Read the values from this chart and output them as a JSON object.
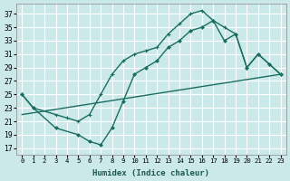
{
  "bg_color": "#cce9e9",
  "line_color": "#1a6e60",
  "xlabel": "Humidex (Indice chaleur)",
  "xlim": [
    -0.5,
    23.5
  ],
  "ylim": [
    16,
    38.5
  ],
  "xticks": [
    0,
    1,
    2,
    3,
    4,
    5,
    6,
    7,
    8,
    9,
    10,
    11,
    12,
    13,
    14,
    15,
    16,
    17,
    18,
    19,
    20,
    21,
    22,
    23
  ],
  "yticks": [
    17,
    19,
    21,
    23,
    25,
    27,
    29,
    31,
    33,
    35,
    37
  ],
  "grid_color": "#ffffff",
  "line1_x": [
    0,
    1,
    3,
    4,
    5,
    6,
    7,
    8,
    9,
    10,
    11,
    12,
    13,
    14,
    15,
    16,
    17,
    18,
    19,
    20,
    21,
    22,
    23
  ],
  "line1_y": [
    25,
    23,
    22,
    21.5,
    21,
    22,
    25,
    28,
    30,
    31,
    31.5,
    32,
    34,
    35.5,
    37,
    37.5,
    36,
    35,
    34,
    29,
    31,
    29.5,
    28
  ],
  "line2_x": [
    0,
    23
  ],
  "line2_y": [
    22,
    28
  ],
  "line3_x": [
    0,
    1,
    3,
    5,
    6,
    7,
    8,
    9,
    10,
    11,
    12,
    13,
    14,
    15,
    16,
    17,
    18,
    19,
    20,
    21,
    22,
    23
  ],
  "line3_y": [
    25,
    23,
    20,
    19,
    18,
    17.5,
    20,
    24,
    28,
    29,
    30,
    32,
    33,
    34.5,
    35,
    36,
    33,
    34,
    29,
    31,
    29.5,
    28
  ]
}
